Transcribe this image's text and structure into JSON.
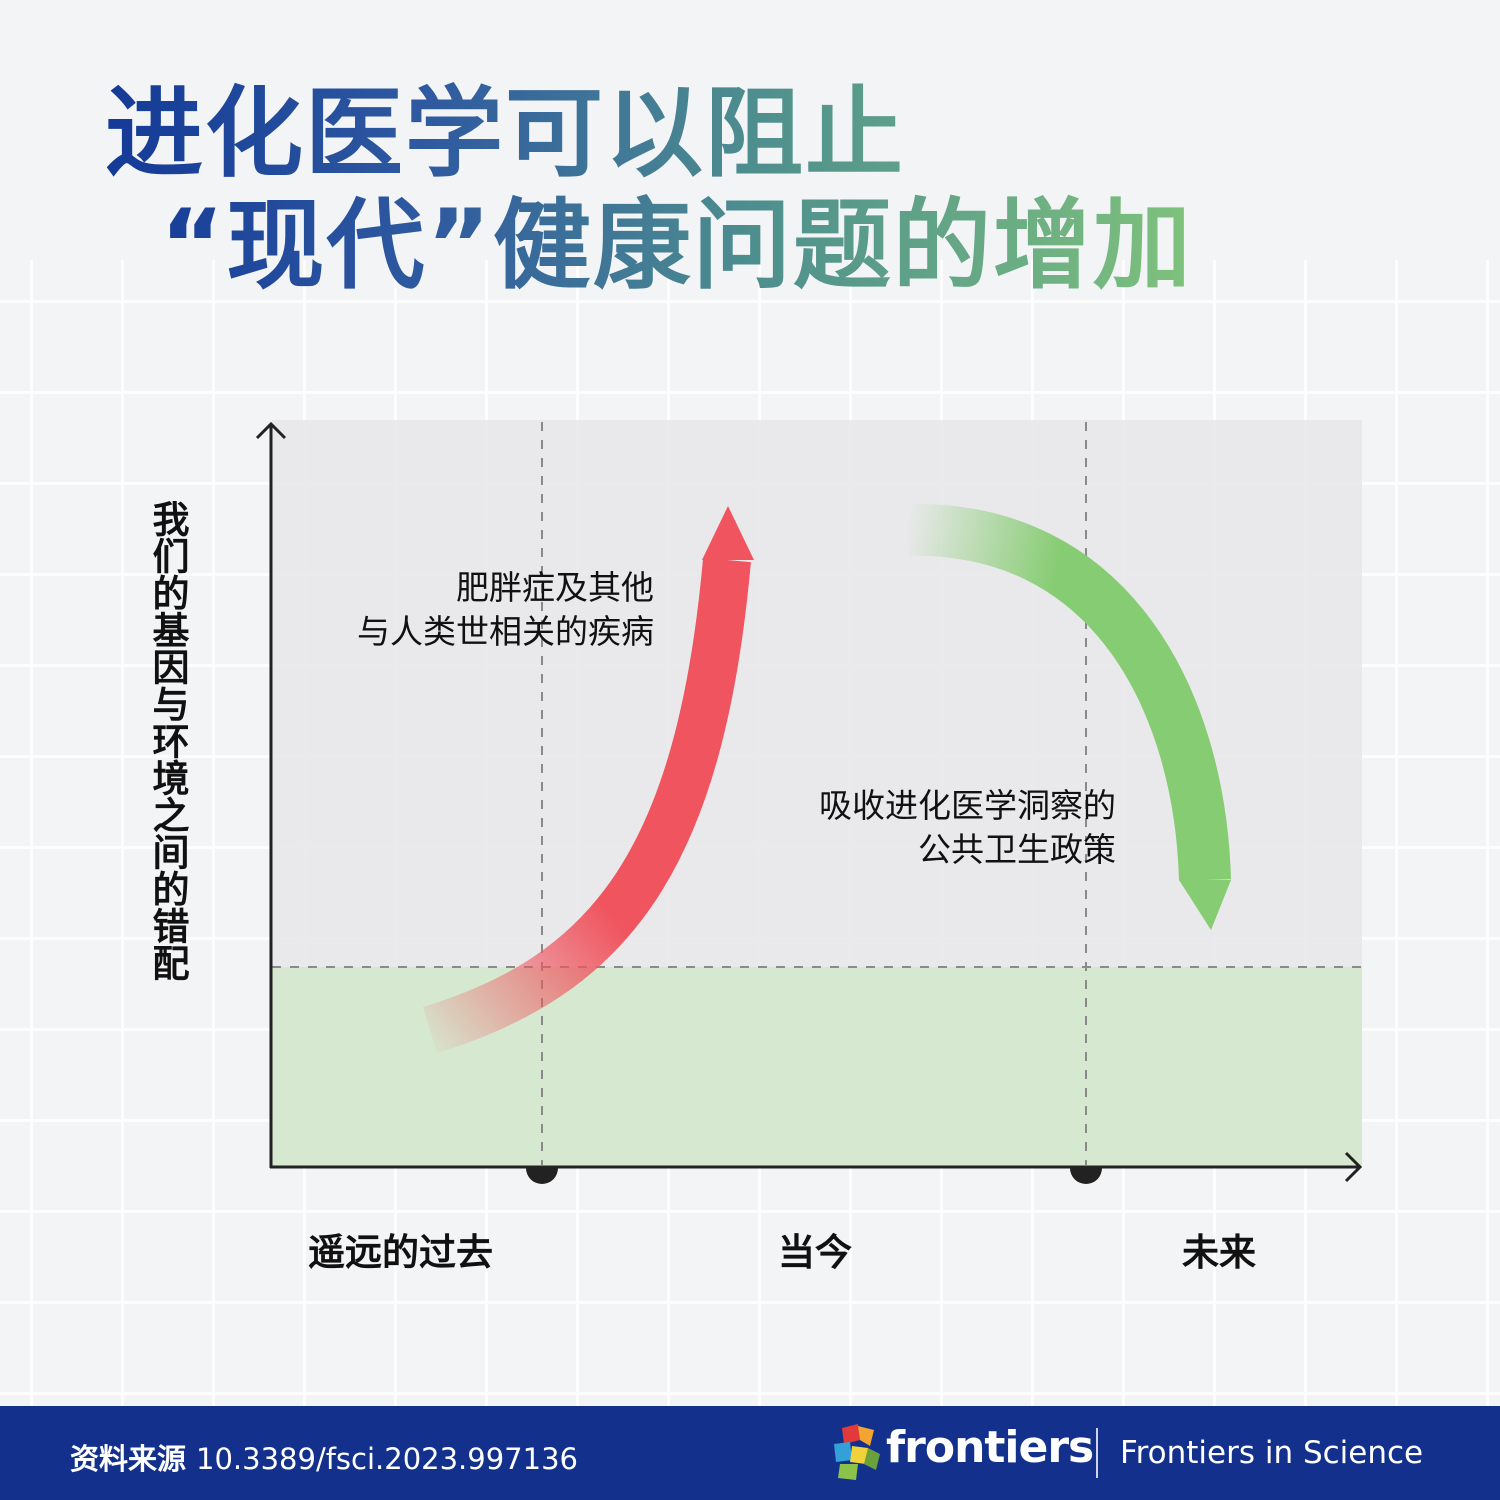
{
  "title": {
    "line1": "进化医学可以阻止",
    "line2": "“现代”健康问题的增加"
  },
  "diagram": {
    "y_axis_label": "我们的基因与环境之间的错配",
    "annotation_rising": [
      "肥胖症及其他",
      "与人类世相关的疾病"
    ],
    "annotation_falling": [
      "吸收进化医学洞察的",
      "公共卫生政策"
    ],
    "x_labels": {
      "past": "遥远的过去",
      "present": "当今",
      "future": "未来"
    }
  },
  "colors": {
    "title_start": "#143a97",
    "title_end": "#7fc27c",
    "rising_arrow": "#f0545e",
    "falling_arrow": "#86cc72",
    "baseline_band": "#d6e8cf",
    "footer": "#13318c"
  },
  "footer": {
    "source_label": "资料来源",
    "source_doi": "10.3389/fsci.2023.997136",
    "brand": "frontiers",
    "journal": "Frontiers in Science"
  }
}
